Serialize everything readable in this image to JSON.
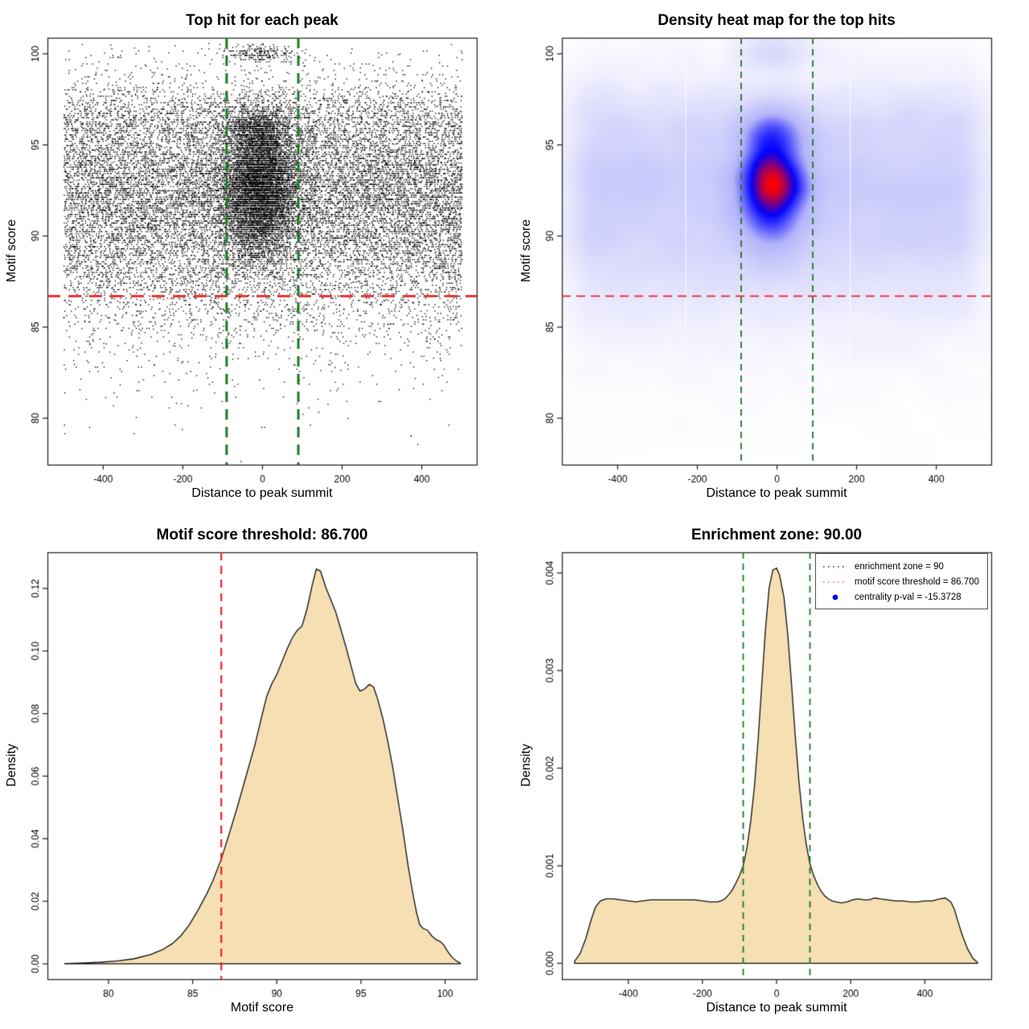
{
  "figure": {
    "background": "#ffffff"
  },
  "chart_data": [
    {
      "type": "scatter",
      "title": "Top hit for each peak",
      "xlabel": "Distance to peak summit",
      "ylabel": "Motif score",
      "xlim": [
        -540,
        538
      ],
      "ylim": [
        77.45,
        100.88
      ],
      "xticks": [
        -400,
        -200,
        0,
        200,
        400
      ],
      "xtick_labels": [
        "-400",
        "-200",
        "0",
        "200",
        "400"
      ],
      "yticks": [
        80,
        85,
        90,
        95,
        100
      ],
      "ytick_labels": [
        "80",
        "85",
        "90",
        "95",
        "100"
      ],
      "grid": false,
      "point_color": "#000000",
      "points_summary": {
        "n": 26000,
        "seed": 1234567,
        "x_background": {
          "dist": "uniform",
          "min": -500,
          "max": 500,
          "weight": 0.7
        },
        "x_enriched": {
          "dist": "normal",
          "mean": -8,
          "sd": 46,
          "weight": 0.3
        },
        "y_background": "sampled-from-motif-score-density-curve",
        "y_enriched_modes": [
          {
            "mean": 92.5,
            "sd": 1.15,
            "w": 0.4
          },
          {
            "mean": 95.5,
            "sd": 0.9,
            "w": 0.25
          },
          {
            "mean": 90.7,
            "sd": 1.35,
            "w": 0.2
          },
          {
            "mean": 93.5,
            "sd": 0.65,
            "w": 0.12
          },
          {
            "mean": 100.0,
            "sd": 0.25,
            "w": 0.03
          }
        ],
        "score_quantum": 0.118,
        "quantized_fraction": 0.82
      },
      "ref_lines": [
        {
          "name": "motif-score-threshold",
          "orientation": "horizontal",
          "value": 86.7,
          "color": "#ee2222",
          "width": 2.8,
          "dash": [
            16,
            10
          ]
        },
        {
          "name": "enrichment-zone-left",
          "orientation": "vertical",
          "value": -90,
          "color": "#1c7a21",
          "width": 3,
          "dash": [
            13,
            9
          ]
        },
        {
          "name": "enrichment-zone-right",
          "orientation": "vertical",
          "value": 90,
          "color": "#1c7a21",
          "width": 3,
          "dash": [
            13,
            9
          ]
        }
      ]
    },
    {
      "type": "density-heatmap",
      "title": "Density heat map for the top hits",
      "xlabel": "Distance to peak summit",
      "ylabel": "Motif score",
      "xlim": [
        -540,
        538
      ],
      "ylim": [
        77.45,
        100.88
      ],
      "xticks": [
        -400,
        -200,
        0,
        200,
        400
      ],
      "xtick_labels": [
        "-400",
        "-200",
        "0",
        "200",
        "400"
      ],
      "yticks": [
        80,
        85,
        90,
        95,
        100
      ],
      "ytick_labels": [
        "80",
        "85",
        "90",
        "95",
        "100"
      ],
      "colormap_stops": [
        [
          0,
          "#ffffff"
        ],
        [
          0.5,
          "#b4b4fa"
        ],
        [
          0.78,
          "#0000ff"
        ],
        [
          1,
          "#ff0000"
        ]
      ],
      "gamma": 0.58,
      "hot_spots": [
        {
          "x": -8,
          "motif_score": 95.6,
          "intensity": "red"
        },
        {
          "x": -6,
          "motif_score": 93.5,
          "intensity": "red"
        },
        {
          "x": -8,
          "motif_score": 92.5,
          "intensity": "red-max"
        }
      ],
      "artifact_lines": [
        -229,
        184
      ],
      "points_summary": {
        "n": 22000,
        "seed": 424242,
        "x_background": {
          "dist": "uniform",
          "min": -500,
          "max": 500,
          "weight": 0.7
        },
        "x_enriched": {
          "dist": "normal",
          "mean": -8,
          "sd": 46,
          "weight": 0.3
        },
        "y_background": "sampled-from-motif-score-density-curve",
        "y_enriched_modes": [
          {
            "mean": 92.5,
            "sd": 1.15,
            "w": 0.4
          },
          {
            "mean": 95.5,
            "sd": 0.9,
            "w": 0.25
          },
          {
            "mean": 90.7,
            "sd": 1.35,
            "w": 0.2
          },
          {
            "mean": 93.5,
            "sd": 0.65,
            "w": 0.12
          },
          {
            "mean": 100.0,
            "sd": 0.25,
            "w": 0.03
          }
        ],
        "score_quantum": 0.118,
        "quantized_fraction": 0.82
      },
      "ref_lines": [
        {
          "name": "motif-score-threshold",
          "orientation": "horizontal",
          "value": 86.7,
          "color": "#ee2222",
          "width": 1.8,
          "dash": [
            11,
            7
          ]
        },
        {
          "name": "enrichment-zone-left",
          "orientation": "vertical",
          "value": -90,
          "color": "#1c7a21",
          "width": 1.8,
          "dash": [
            8,
            6
          ]
        },
        {
          "name": "enrichment-zone-right",
          "orientation": "vertical",
          "value": 90,
          "color": "#1c7a21",
          "width": 1.8,
          "dash": [
            8,
            6
          ]
        }
      ]
    },
    {
      "type": "density-area",
      "title": "Motif score threshold: 86.700",
      "xlabel": "Motif score",
      "ylabel": "Density",
      "xlim": [
        76.37,
        101.88
      ],
      "ylim": [
        -0.00489,
        0.13155
      ],
      "xticks": [
        80,
        85,
        90,
        95,
        100
      ],
      "xtick_labels": [
        "80",
        "85",
        "90",
        "95",
        "100"
      ],
      "yticks": [
        0,
        0.02,
        0.04,
        0.06,
        0.08,
        0.1,
        0.12
      ],
      "ytick_labels": [
        "0.00",
        "0.02",
        "0.04",
        "0.06",
        "0.08",
        "0.10",
        "0.12"
      ],
      "fill": "#f5dfb3",
      "stroke": "#111111",
      "curve": [
        [
          77.4,
          0.0001
        ],
        [
          78.5,
          0.0003
        ],
        [
          79.5,
          0.0005
        ],
        [
          80.5,
          0.0009
        ],
        [
          81.5,
          0.0016
        ],
        [
          82.5,
          0.003
        ],
        [
          83.2,
          0.0045
        ],
        [
          83.8,
          0.0065
        ],
        [
          84.3,
          0.009
        ],
        [
          84.8,
          0.0125
        ],
        [
          85.3,
          0.017
        ],
        [
          85.8,
          0.022
        ],
        [
          86.2,
          0.0265
        ],
        [
          86.7,
          0.0335
        ],
        [
          87.2,
          0.042
        ],
        [
          87.7,
          0.051
        ],
        [
          88.2,
          0.0605
        ],
        [
          88.7,
          0.07
        ],
        [
          89.1,
          0.079
        ],
        [
          89.4,
          0.0855
        ],
        [
          89.7,
          0.0895
        ],
        [
          90.0,
          0.0925
        ],
        [
          90.3,
          0.0965
        ],
        [
          90.6,
          0.1005
        ],
        [
          90.9,
          0.104
        ],
        [
          91.2,
          0.1065
        ],
        [
          91.5,
          0.108
        ],
        [
          91.8,
          0.1135
        ],
        [
          92.1,
          0.121
        ],
        [
          92.35,
          0.1262
        ],
        [
          92.6,
          0.1255
        ],
        [
          92.9,
          0.1205
        ],
        [
          93.2,
          0.1165
        ],
        [
          93.5,
          0.1125
        ],
        [
          93.8,
          0.107
        ],
        [
          94.1,
          0.1015
        ],
        [
          94.4,
          0.0955
        ],
        [
          94.7,
          0.0895
        ],
        [
          94.95,
          0.0872
        ],
        [
          95.2,
          0.0878
        ],
        [
          95.5,
          0.0893
        ],
        [
          95.75,
          0.0885
        ],
        [
          96.0,
          0.0845
        ],
        [
          96.3,
          0.0785
        ],
        [
          96.6,
          0.071
        ],
        [
          96.9,
          0.0625
        ],
        [
          97.2,
          0.0525
        ],
        [
          97.5,
          0.0425
        ],
        [
          97.8,
          0.0315
        ],
        [
          98.05,
          0.0235
        ],
        [
          98.3,
          0.0165
        ],
        [
          98.5,
          0.0125
        ],
        [
          98.7,
          0.0113
        ],
        [
          98.95,
          0.0108
        ],
        [
          99.2,
          0.009
        ],
        [
          99.45,
          0.0078
        ],
        [
          99.7,
          0.0072
        ],
        [
          99.9,
          0.0062
        ],
        [
          100.15,
          0.004
        ],
        [
          100.4,
          0.0022
        ],
        [
          100.65,
          0.001
        ],
        [
          100.9,
          0.0003
        ]
      ],
      "ref_lines": [
        {
          "name": "motif-score-threshold",
          "orientation": "vertical",
          "value": 86.7,
          "color": "#ee2222",
          "width": 2.2,
          "dash": [
            10,
            7
          ]
        }
      ]
    },
    {
      "type": "density-area",
      "title": "Enrichment zone: 90.00",
      "xlabel": "Distance to peak summit",
      "ylabel": "Density",
      "xlim": [
        -579,
        579
      ],
      "ylim": [
        -0.000162,
        0.004212
      ],
      "xticks": [
        -400,
        -200,
        0,
        200,
        400
      ],
      "xtick_labels": [
        "-400",
        "-200",
        "0",
        "200",
        "400"
      ],
      "yticks": [
        0,
        0.001,
        0.002,
        0.003,
        0.004
      ],
      "ytick_labels": [
        "0.000",
        "0.001",
        "0.002",
        "0.003",
        "0.004"
      ],
      "fill": "#f5dfb3",
      "stroke": "#111111",
      "curve": [
        [
          -545,
          2e-05
        ],
        [
          -530,
          0.0001
        ],
        [
          -515,
          0.00025
        ],
        [
          -500,
          0.00045
        ],
        [
          -488,
          0.00058
        ],
        [
          -475,
          0.00064
        ],
        [
          -460,
          0.00066
        ],
        [
          -440,
          0.00066
        ],
        [
          -420,
          0.00065
        ],
        [
          -400,
          0.00064
        ],
        [
          -380,
          0.00063
        ],
        [
          -360,
          0.00064
        ],
        [
          -340,
          0.00065
        ],
        [
          -320,
          0.00065
        ],
        [
          -300,
          0.00065
        ],
        [
          -280,
          0.00065
        ],
        [
          -260,
          0.00065
        ],
        [
          -240,
          0.00065
        ],
        [
          -220,
          0.00065
        ],
        [
          -200,
          0.00064
        ],
        [
          -180,
          0.00063
        ],
        [
          -160,
          0.00063
        ],
        [
          -150,
          0.00064
        ],
        [
          -140,
          0.00066
        ],
        [
          -130,
          0.0007
        ],
        [
          -120,
          0.00075
        ],
        [
          -110,
          0.00082
        ],
        [
          -100,
          0.0009
        ],
        [
          -90,
          0.001
        ],
        [
          -80,
          0.00118
        ],
        [
          -70,
          0.00145
        ],
        [
          -60,
          0.0018
        ],
        [
          -50,
          0.00228
        ],
        [
          -40,
          0.00285
        ],
        [
          -30,
          0.00342
        ],
        [
          -20,
          0.00385
        ],
        [
          -10,
          0.00403
        ],
        [
          0,
          0.00405
        ],
        [
          8,
          0.00398
        ],
        [
          20,
          0.00375
        ],
        [
          30,
          0.00338
        ],
        [
          40,
          0.00288
        ],
        [
          50,
          0.00235
        ],
        [
          60,
          0.00188
        ],
        [
          70,
          0.0015
        ],
        [
          80,
          0.00122
        ],
        [
          90,
          0.00102
        ],
        [
          100,
          0.0009
        ],
        [
          110,
          0.00081
        ],
        [
          120,
          0.00074
        ],
        [
          130,
          0.00069
        ],
        [
          140,
          0.00066
        ],
        [
          150,
          0.00064
        ],
        [
          160,
          0.00063
        ],
        [
          175,
          0.00062
        ],
        [
          190,
          0.00063
        ],
        [
          205,
          0.00065
        ],
        [
          220,
          0.00066
        ],
        [
          235,
          0.00065
        ],
        [
          250,
          0.00065
        ],
        [
          265,
          0.00067
        ],
        [
          280,
          0.00066
        ],
        [
          300,
          0.00065
        ],
        [
          320,
          0.00064
        ],
        [
          340,
          0.00064
        ],
        [
          360,
          0.00063
        ],
        [
          380,
          0.00063
        ],
        [
          400,
          0.00064
        ],
        [
          420,
          0.00064
        ],
        [
          440,
          0.00066
        ],
        [
          455,
          0.00067
        ],
        [
          470,
          0.00063
        ],
        [
          480,
          0.00055
        ],
        [
          490,
          0.00042
        ],
        [
          500,
          0.0003
        ],
        [
          515,
          0.00015
        ],
        [
          530,
          5e-05
        ],
        [
          542,
          1e-05
        ]
      ],
      "ref_lines": [
        {
          "name": "enrichment-zone-left",
          "orientation": "vertical",
          "value": -90,
          "color": "#1c7a21",
          "width": 1.8,
          "dash": [
            8,
            6
          ]
        },
        {
          "name": "enrichment-zone-right",
          "orientation": "vertical",
          "value": 90,
          "color": "#1c7a21",
          "width": 1.8,
          "dash": [
            8,
            6
          ]
        }
      ],
      "legend": {
        "border_color": "#555555",
        "position": "top-right",
        "items": [
          {
            "symbol": "dotted-line",
            "color": "#1c7a21",
            "label": "enrichment zone = 90"
          },
          {
            "symbol": "dotted-line",
            "color": "#f28b7d",
            "label": "motif score threshold = 86.700"
          },
          {
            "symbol": "dot",
            "color": "#0000ee",
            "label": "centrality p-val = -15.3728"
          }
        ]
      }
    }
  ]
}
